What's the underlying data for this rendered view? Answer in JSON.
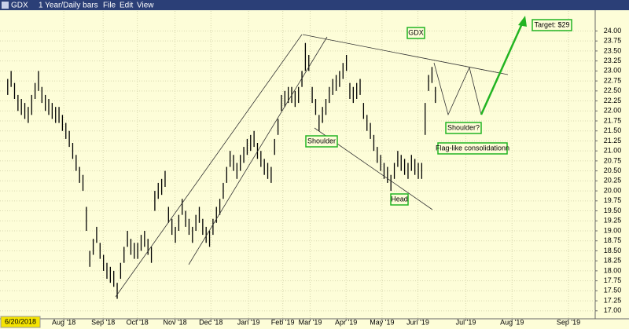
{
  "chart_data": {
    "type": "ohlc",
    "title": "GDX",
    "subtitle": "1 Year/Daily bars",
    "menu": [
      "File",
      "Edit",
      "View"
    ],
    "start_label": "6/20/2018",
    "color": "#000000",
    "grid": true,
    "xlim": [
      -1.1,
      171.7
    ],
    "xticks": [
      {
        "value": 17.5,
        "label": "Aug '18"
      },
      {
        "value": 29,
        "label": "Sep '18"
      },
      {
        "value": 39,
        "label": "Oct '18"
      },
      {
        "value": 50,
        "label": "Nov '18"
      },
      {
        "value": 60.5,
        "label": "Dec '18"
      },
      {
        "value": 71.5,
        "label": "Jan '19"
      },
      {
        "value": 81.5,
        "label": "Feb '19"
      },
      {
        "value": 89.5,
        "label": "Mar '19"
      },
      {
        "value": 100,
        "label": "Apr '19"
      },
      {
        "value": 110.5,
        "label": "May '19"
      },
      {
        "value": 121,
        "label": "Jun '19"
      },
      {
        "value": 135,
        "label": "Jul '19"
      },
      {
        "value": 148.5,
        "label": "Aug '19"
      },
      {
        "value": 165,
        "label": "Sep '19"
      }
    ],
    "ylim": [
      16.8,
      24.5
    ],
    "yticks": [
      {
        "value": 17,
        "label": "17.00"
      },
      {
        "value": 17.25,
        "label": "17.25"
      },
      {
        "value": 17.5,
        "label": "17.50"
      },
      {
        "value": 17.75,
        "label": "17.75"
      },
      {
        "value": 18,
        "label": "18.00"
      },
      {
        "value": 18.25,
        "label": "18.25"
      },
      {
        "value": 18.5,
        "label": "18.50"
      },
      {
        "value": 18.75,
        "label": "18.75"
      },
      {
        "value": 19,
        "label": "19.00"
      },
      {
        "value": 19.25,
        "label": "19.25"
      },
      {
        "value": 19.5,
        "label": "19.50"
      },
      {
        "value": 19.75,
        "label": "19.75"
      },
      {
        "value": 20,
        "label": "20.00"
      },
      {
        "value": 20.25,
        "label": "20.25"
      },
      {
        "value": 20.5,
        "label": "20.50"
      },
      {
        "value": 20.75,
        "label": "20.75"
      },
      {
        "value": 21,
        "label": "21.00"
      },
      {
        "value": 21.25,
        "label": "21.25"
      },
      {
        "value": 21.5,
        "label": "21.50"
      },
      {
        "value": 21.75,
        "label": "21.75"
      },
      {
        "value": 22,
        "label": "22.00"
      },
      {
        "value": 22.25,
        "label": "22.25"
      },
      {
        "value": 22.5,
        "label": "22.50"
      },
      {
        "value": 22.75,
        "label": "22.75"
      },
      {
        "value": 23,
        "label": "23.00"
      },
      {
        "value": 23.25,
        "label": "23.25"
      },
      {
        "value": 23.5,
        "label": "23.50"
      },
      {
        "value": 23.75,
        "label": "23.75"
      },
      {
        "value": 24,
        "label": "24.00"
      }
    ],
    "values": [
      [
        22.4,
        22.8
      ],
      [
        22.6,
        23.0
      ],
      [
        22.3,
        22.7
      ],
      [
        22.0,
        22.4
      ],
      [
        21.9,
        22.3
      ],
      [
        21.8,
        22.2
      ],
      [
        21.7,
        22.1
      ],
      [
        21.9,
        22.4
      ],
      [
        22.3,
        22.7
      ],
      [
        22.5,
        23.0
      ],
      [
        22.2,
        22.6
      ],
      [
        22.0,
        22.4
      ],
      [
        21.9,
        22.3
      ],
      [
        21.8,
        22.2
      ],
      [
        21.7,
        22.1
      ],
      [
        21.7,
        22.1
      ],
      [
        21.5,
        21.9
      ],
      [
        21.3,
        21.7
      ],
      [
        21.1,
        21.5
      ],
      [
        20.8,
        21.2
      ],
      [
        20.5,
        20.9
      ],
      [
        20.2,
        20.6
      ],
      [
        20.0,
        20.4
      ],
      [
        19.0,
        19.6
      ],
      [
        18.1,
        18.5
      ],
      [
        18.4,
        18.8
      ],
      [
        18.7,
        19.1
      ],
      [
        18.3,
        18.7
      ],
      [
        18.0,
        18.4
      ],
      [
        17.8,
        18.2
      ],
      [
        17.7,
        18.1
      ],
      [
        17.6,
        18.0
      ],
      [
        17.3,
        17.7
      ],
      [
        17.8,
        18.2
      ],
      [
        18.2,
        18.6
      ],
      [
        18.6,
        19.0
      ],
      [
        18.4,
        18.8
      ],
      [
        18.3,
        18.7
      ],
      [
        18.3,
        18.7
      ],
      [
        18.5,
        18.9
      ],
      [
        18.6,
        19.0
      ],
      [
        18.4,
        18.8
      ],
      [
        18.2,
        18.6
      ],
      [
        19.5,
        20.0
      ],
      [
        19.8,
        20.2
      ],
      [
        19.9,
        20.3
      ],
      [
        20.1,
        20.5
      ],
      [
        19.2,
        19.6
      ],
      [
        18.9,
        19.3
      ],
      [
        18.7,
        19.1
      ],
      [
        19.0,
        19.4
      ],
      [
        19.4,
        19.8
      ],
      [
        19.1,
        19.5
      ],
      [
        18.9,
        19.3
      ],
      [
        18.7,
        19.1
      ],
      [
        19.0,
        19.4
      ],
      [
        19.2,
        19.6
      ],
      [
        18.9,
        19.3
      ],
      [
        18.7,
        19.1
      ],
      [
        18.6,
        19.0
      ],
      [
        18.9,
        19.3
      ],
      [
        19.2,
        19.6
      ],
      [
        19.4,
        19.8
      ],
      [
        19.8,
        20.2
      ],
      [
        20.2,
        20.6
      ],
      [
        20.6,
        21.0
      ],
      [
        20.5,
        20.9
      ],
      [
        20.3,
        20.7
      ],
      [
        20.5,
        20.9
      ],
      [
        20.7,
        21.1
      ],
      [
        20.9,
        21.3
      ],
      [
        21.0,
        21.4
      ],
      [
        21.1,
        21.5
      ],
      [
        20.8,
        21.2
      ],
      [
        20.6,
        21.0
      ],
      [
        20.4,
        20.8
      ],
      [
        20.3,
        20.7
      ],
      [
        20.2,
        20.6
      ],
      [
        20.9,
        21.3
      ],
      [
        21.4,
        21.8
      ],
      [
        22.0,
        22.4
      ],
      [
        22.1,
        22.5
      ],
      [
        22.2,
        22.6
      ],
      [
        22.2,
        22.6
      ],
      [
        22.1,
        22.5
      ],
      [
        22.2,
        22.6
      ],
      [
        22.6,
        23.0
      ],
      [
        23.0,
        23.7
      ],
      [
        23.0,
        23.4
      ],
      [
        22.2,
        22.6
      ],
      [
        21.9,
        22.3
      ],
      [
        21.5,
        21.9
      ],
      [
        21.7,
        22.1
      ],
      [
        21.9,
        22.3
      ],
      [
        22.2,
        22.6
      ],
      [
        22.4,
        22.8
      ],
      [
        22.5,
        22.9
      ],
      [
        22.6,
        23.0
      ],
      [
        22.8,
        23.2
      ],
      [
        23.0,
        23.4
      ],
      [
        22.3,
        22.7
      ],
      [
        22.2,
        22.6
      ],
      [
        22.3,
        22.7
      ],
      [
        22.4,
        22.8
      ],
      [
        21.8,
        22.2
      ],
      [
        21.5,
        21.9
      ],
      [
        21.3,
        21.7
      ],
      [
        21.0,
        21.4
      ],
      [
        20.7,
        21.1
      ],
      [
        20.5,
        20.9
      ],
      [
        20.3,
        20.7
      ],
      [
        20.2,
        20.6
      ],
      [
        20.0,
        20.4
      ],
      [
        20.3,
        20.7
      ],
      [
        20.6,
        21.0
      ],
      [
        20.5,
        20.9
      ],
      [
        20.4,
        20.8
      ],
      [
        20.3,
        20.7
      ],
      [
        20.5,
        20.9
      ],
      [
        20.4,
        20.8
      ],
      [
        20.3,
        20.7
      ],
      [
        20.3,
        20.7
      ],
      [
        21.4,
        22.2
      ],
      [
        22.5,
        22.9
      ],
      [
        22.7,
        23.1
      ],
      [
        22.2,
        22.6
      ]
    ],
    "annotations": [
      "GDX",
      "Shoulder",
      "Head",
      "Shoulder?",
      "Flag-like consolidationn",
      "Target: $29"
    ]
  }
}
